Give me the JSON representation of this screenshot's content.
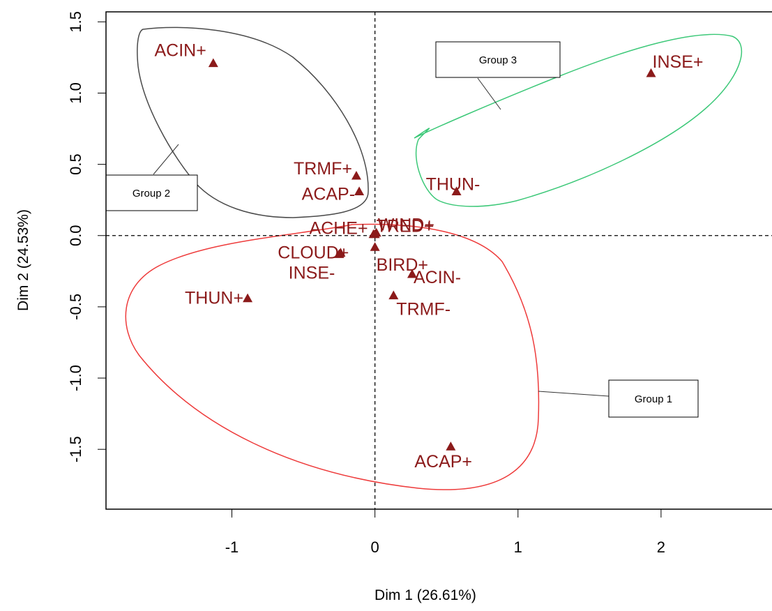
{
  "chart_data": {
    "type": "scatter",
    "xlabel": "Dim 1 (26.61%)",
    "ylabel": "Dim 2 (24.53%)",
    "xlim": [
      -1.88,
      2.8
    ],
    "ylim": [
      -1.92,
      1.57
    ],
    "xticks": [
      -1,
      0,
      1,
      2
    ],
    "yticks": [
      -1.5,
      -1.0,
      -0.5,
      0.0,
      0.5,
      1.0,
      1.5
    ],
    "xtick_labels": [
      "-1",
      "0",
      "1",
      "2"
    ],
    "ytick_labels": [
      "-1.5",
      "-1.0",
      "-0.5",
      "0.0",
      "0.5",
      "1.0",
      "1.5"
    ],
    "reference_lines": {
      "x": 0,
      "y": 0,
      "style": "dashed"
    },
    "grid": false,
    "marker_color": "#8b1a1a",
    "points": [
      {
        "label": "ACIN+",
        "x": -1.13,
        "y": 1.21
      },
      {
        "label": "TRMF+",
        "x": -0.13,
        "y": 0.42
      },
      {
        "label": "ACAP-",
        "x": -0.11,
        "y": 0.31
      },
      {
        "label": "THUN-",
        "x": 0.57,
        "y": 0.31
      },
      {
        "label": "INSE+",
        "x": 1.93,
        "y": 1.14
      },
      {
        "label": "ACHE+",
        "x": -0.01,
        "y": 0.01
      },
      {
        "label": "TRED+",
        "x": 0.0,
        "y": 0.01
      },
      {
        "label": "WIND+",
        "x": 0.01,
        "y": 0.02
      },
      {
        "label": "CLOUD+",
        "x": -0.24,
        "y": -0.12
      },
      {
        "label": "INSE-",
        "x": -0.25,
        "y": -0.13
      },
      {
        "label": "BIRD+",
        "x": 0.0,
        "y": -0.08
      },
      {
        "label": "ACIN-",
        "x": 0.26,
        "y": -0.27
      },
      {
        "label": "TRMF-",
        "x": 0.13,
        "y": -0.42
      },
      {
        "label": "THUN+",
        "x": -0.89,
        "y": -0.44
      },
      {
        "label": "ACAP+",
        "x": 0.53,
        "y": -1.48
      }
    ],
    "groups": [
      {
        "label": "Group 1",
        "color": "#ee3b3b",
        "members": [
          "THUN+",
          "ACAP+",
          "ACIN-",
          "TRMF-",
          "CLOUD+",
          "INSE-",
          "BIRD+",
          "ACHE+",
          "TRED+",
          "WIND+"
        ]
      },
      {
        "label": "Group 2",
        "color": "#4a4a4a",
        "members": [
          "ACIN+",
          "TRMF+",
          "ACAP-"
        ]
      },
      {
        "label": "Group 3",
        "color": "#3cc878",
        "members": [
          "INSE+",
          "THUN-"
        ]
      }
    ]
  }
}
